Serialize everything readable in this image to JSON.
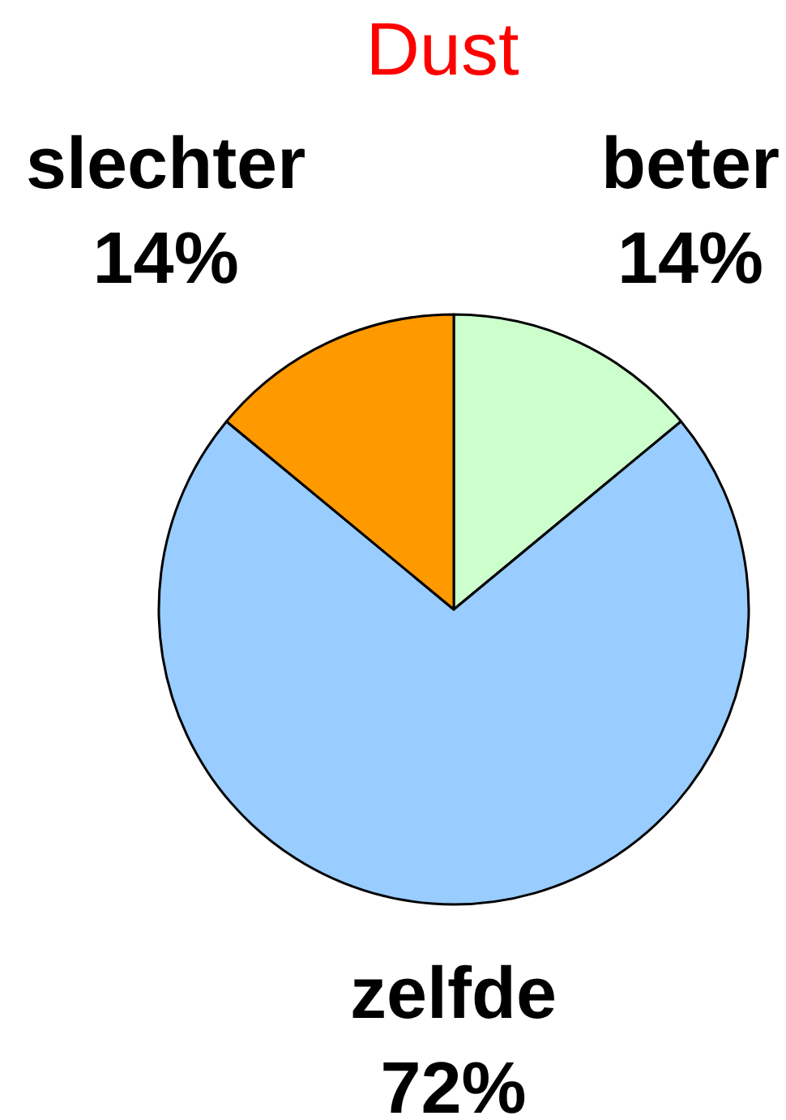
{
  "chart_data": {
    "type": "pie",
    "title": "Dust",
    "categories": [
      "beter",
      "zelfde",
      "slechter"
    ],
    "values": [
      14,
      72,
      14
    ],
    "value_labels": [
      "14%",
      "72%",
      "14%"
    ],
    "colors": [
      "#ccffcc",
      "#99ccff",
      "#ff9900"
    ],
    "legend": false
  }
}
